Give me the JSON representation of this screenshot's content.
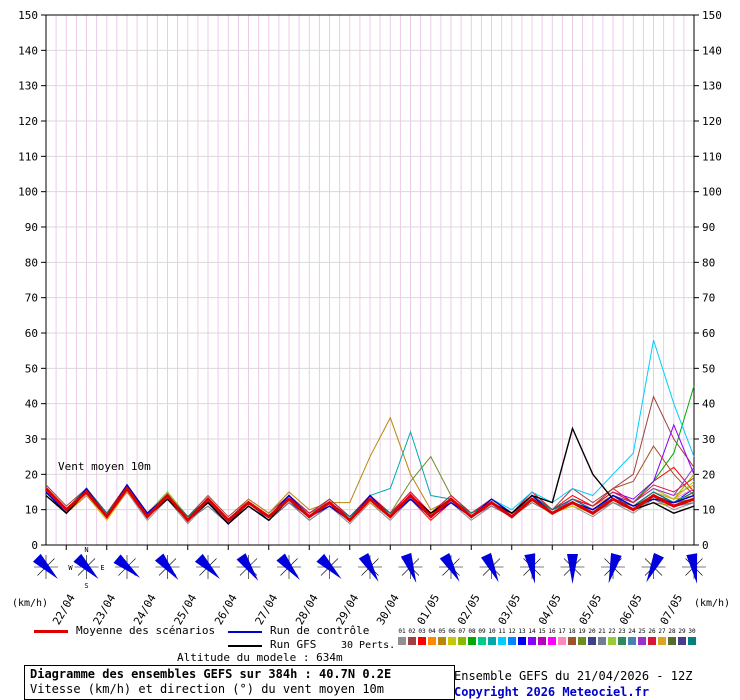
{
  "chart_data": {
    "type": "line",
    "ylim": [
      0,
      150
    ],
    "ytick_step": 10,
    "x_hours_max": 384,
    "x_step_hours": 12,
    "grid_minor_hours": 6,
    "unit_label": "(km/h)",
    "inline_label": "Vent moyen 10m",
    "dates": [
      "22/04",
      "23/04",
      "24/04",
      "25/04",
      "26/04",
      "27/04",
      "28/04",
      "29/04",
      "30/04",
      "01/05",
      "02/05",
      "03/05",
      "04/05",
      "05/05",
      "06/05",
      "07/05"
    ],
    "grid_color_h": "#d9d9d9",
    "grid_color_v": "#eccbe8",
    "mean": {
      "name": "Moyenne des scénarios",
      "color": "#dd0000",
      "values": [
        16,
        10,
        15,
        8,
        16,
        8,
        14,
        7,
        13,
        7,
        12,
        8,
        13,
        8,
        12,
        7,
        13,
        8,
        14,
        8,
        13,
        8,
        12,
        8,
        13,
        9,
        12,
        9,
        13,
        10,
        14,
        11,
        13
      ]
    },
    "control": {
      "name": "Run de contrôle",
      "color": "#0000cc",
      "values": [
        15,
        9,
        16,
        8,
        17,
        9,
        14,
        7,
        12,
        6,
        12,
        8,
        14,
        8,
        11,
        7,
        14,
        8,
        13,
        8,
        12,
        8,
        13,
        9,
        14,
        9,
        12,
        10,
        14,
        11,
        13,
        12,
        14
      ]
    },
    "gfs": {
      "name": "Run GFS",
      "color": "#000000",
      "values": [
        14,
        9,
        15,
        8,
        16,
        8,
        13,
        7,
        12,
        6,
        11,
        7,
        13,
        8,
        12,
        7,
        13,
        8,
        14,
        9,
        13,
        8,
        12,
        9,
        14,
        12,
        33,
        20,
        13,
        10,
        12,
        9,
        11
      ]
    },
    "members": [
      {
        "id": "01",
        "color": "#909090",
        "values": [
          15,
          9,
          14,
          8,
          15,
          7,
          13,
          6,
          12,
          6,
          11,
          7,
          12,
          7,
          11,
          6,
          12,
          7,
          13,
          8,
          12,
          7,
          11,
          8,
          14,
          9,
          11,
          8,
          12,
          9,
          13,
          10,
          12
        ]
      },
      {
        "id": "02",
        "color": "#a04040",
        "values": [
          17,
          11,
          16,
          9,
          15,
          8,
          15,
          8,
          14,
          8,
          13,
          9,
          14,
          8,
          13,
          8,
          14,
          9,
          15,
          9,
          14,
          9,
          13,
          9,
          14,
          10,
          16,
          12,
          16,
          20,
          42,
          30,
          22
        ]
      },
      {
        "id": "03",
        "color": "#ff0000",
        "values": [
          16,
          10,
          15,
          8,
          17,
          9,
          14,
          7,
          12,
          6,
          12,
          8,
          14,
          9,
          12,
          7,
          14,
          8,
          13,
          7,
          12,
          8,
          13,
          9,
          15,
          10,
          14,
          11,
          16,
          12,
          18,
          22,
          15
        ]
      },
      {
        "id": "04",
        "color": "#ff8800",
        "values": [
          15,
          10,
          16,
          9,
          16,
          8,
          14,
          8,
          13,
          7,
          12,
          8,
          13,
          9,
          12,
          8,
          13,
          9,
          14,
          9,
          13,
          9,
          12,
          9,
          13,
          10,
          13,
          11,
          14,
          12,
          16,
          14,
          17
        ]
      },
      {
        "id": "05",
        "color": "#b8860b",
        "values": [
          16,
          9,
          15,
          8,
          15,
          8,
          13,
          7,
          12,
          7,
          13,
          9,
          15,
          10,
          12,
          12,
          25,
          36,
          20,
          10,
          13,
          9,
          12,
          8,
          13,
          9,
          12,
          9,
          13,
          10,
          12,
          11,
          13
        ]
      },
      {
        "id": "06",
        "color": "#c8c800",
        "values": [
          14,
          9,
          14,
          7,
          15,
          8,
          13,
          7,
          11,
          6,
          11,
          7,
          12,
          8,
          11,
          7,
          12,
          8,
          13,
          8,
          12,
          8,
          11,
          8,
          12,
          9,
          11,
          9,
          12,
          10,
          13,
          11,
          12
        ]
      },
      {
        "id": "07",
        "color": "#88bb00",
        "values": [
          15,
          10,
          15,
          8,
          16,
          9,
          14,
          8,
          12,
          7,
          12,
          8,
          13,
          8,
          12,
          7,
          13,
          8,
          14,
          9,
          13,
          9,
          12,
          9,
          14,
          10,
          13,
          10,
          14,
          11,
          15,
          13,
          20
        ]
      },
      {
        "id": "08",
        "color": "#00aa00",
        "values": [
          16,
          10,
          16,
          9,
          17,
          9,
          15,
          8,
          13,
          7,
          12,
          8,
          13,
          8,
          12,
          7,
          13,
          8,
          14,
          8,
          13,
          8,
          13,
          9,
          14,
          10,
          13,
          10,
          14,
          12,
          18,
          26,
          45
        ]
      },
      {
        "id": "09",
        "color": "#00cc88",
        "values": [
          15,
          9,
          15,
          8,
          16,
          8,
          14,
          7,
          12,
          6,
          11,
          7,
          12,
          8,
          11,
          7,
          12,
          8,
          13,
          8,
          12,
          8,
          12,
          8,
          13,
          9,
          12,
          9,
          13,
          10,
          14,
          11,
          13
        ]
      },
      {
        "id": "10",
        "color": "#00aaaa",
        "values": [
          16,
          10,
          15,
          9,
          16,
          9,
          14,
          8,
          13,
          7,
          12,
          8,
          14,
          9,
          13,
          8,
          14,
          16,
          32,
          14,
          13,
          9,
          13,
          9,
          14,
          10,
          13,
          10,
          14,
          11,
          15,
          12,
          14
        ]
      },
      {
        "id": "11",
        "color": "#00ccff",
        "values": [
          15,
          9,
          14,
          8,
          15,
          8,
          13,
          7,
          12,
          7,
          12,
          8,
          13,
          8,
          12,
          7,
          13,
          9,
          14,
          9,
          13,
          9,
          13,
          10,
          15,
          12,
          16,
          14,
          20,
          26,
          58,
          40,
          25
        ]
      },
      {
        "id": "12",
        "color": "#0088ff",
        "values": [
          14,
          9,
          15,
          8,
          16,
          8,
          14,
          7,
          12,
          6,
          12,
          7,
          13,
          8,
          12,
          7,
          13,
          8,
          13,
          8,
          12,
          8,
          12,
          9,
          13,
          9,
          12,
          10,
          13,
          11,
          14,
          12,
          13
        ]
      },
      {
        "id": "13",
        "color": "#0000ee",
        "values": [
          16,
          10,
          16,
          9,
          17,
          9,
          14,
          8,
          13,
          7,
          12,
          8,
          13,
          9,
          12,
          8,
          13,
          9,
          14,
          9,
          13,
          9,
          12,
          9,
          14,
          10,
          13,
          10,
          14,
          11,
          15,
          12,
          16
        ]
      },
      {
        "id": "14",
        "color": "#8800ff",
        "values": [
          15,
          10,
          15,
          8,
          16,
          8,
          14,
          7,
          13,
          7,
          12,
          8,
          13,
          8,
          12,
          7,
          13,
          8,
          14,
          8,
          13,
          8,
          12,
          9,
          13,
          10,
          13,
          11,
          15,
          13,
          18,
          34,
          20
        ]
      },
      {
        "id": "15",
        "color": "#bb00bb",
        "values": [
          16,
          10,
          15,
          9,
          16,
          9,
          14,
          8,
          12,
          7,
          12,
          8,
          14,
          9,
          12,
          8,
          13,
          9,
          14,
          9,
          13,
          9,
          12,
          9,
          13,
          10,
          12,
          10,
          13,
          11,
          14,
          12,
          15
        ]
      },
      {
        "id": "16",
        "color": "#ff00ff",
        "values": [
          15,
          9,
          14,
          8,
          15,
          8,
          13,
          7,
          12,
          6,
          11,
          7,
          12,
          8,
          11,
          7,
          12,
          8,
          13,
          8,
          12,
          8,
          11,
          8,
          13,
          9,
          12,
          9,
          13,
          10,
          14,
          11,
          13
        ]
      },
      {
        "id": "17",
        "color": "#ff88bb",
        "values": [
          16,
          10,
          16,
          9,
          16,
          9,
          14,
          8,
          13,
          7,
          12,
          8,
          13,
          9,
          12,
          8,
          13,
          9,
          14,
          9,
          13,
          9,
          13,
          9,
          14,
          10,
          13,
          10,
          14,
          11,
          15,
          13,
          16
        ]
      },
      {
        "id": "18",
        "color": "#a0522d",
        "values": [
          15,
          9,
          15,
          8,
          16,
          8,
          14,
          7,
          12,
          7,
          12,
          8,
          13,
          8,
          12,
          7,
          13,
          8,
          14,
          8,
          13,
          8,
          12,
          9,
          13,
          10,
          13,
          11,
          16,
          18,
          28,
          20,
          14
        ]
      },
      {
        "id": "19",
        "color": "#6b8e23",
        "values": [
          16,
          10,
          15,
          8,
          16,
          9,
          14,
          8,
          13,
          7,
          12,
          8,
          13,
          8,
          12,
          8,
          13,
          9,
          18,
          25,
          14,
          9,
          12,
          9,
          13,
          10,
          12,
          10,
          13,
          11,
          14,
          12,
          15
        ]
      },
      {
        "id": "20",
        "color": "#404088",
        "values": [
          15,
          9,
          14,
          8,
          15,
          8,
          13,
          7,
          12,
          6,
          11,
          7,
          12,
          8,
          12,
          7,
          12,
          8,
          13,
          8,
          12,
          8,
          12,
          8,
          13,
          9,
          12,
          9,
          13,
          10,
          13,
          11,
          12
        ]
      },
      {
        "id": "21",
        "color": "#708090",
        "values": [
          14,
          9,
          14,
          8,
          15,
          8,
          13,
          7,
          11,
          6,
          11,
          7,
          12,
          7,
          11,
          7,
          12,
          8,
          13,
          8,
          12,
          8,
          11,
          8,
          12,
          9,
          12,
          9,
          12,
          10,
          13,
          11,
          12
        ]
      },
      {
        "id": "22",
        "color": "#99cc33",
        "values": [
          16,
          10,
          16,
          9,
          17,
          9,
          15,
          8,
          13,
          7,
          12,
          8,
          13,
          9,
          12,
          8,
          13,
          9,
          14,
          9,
          13,
          9,
          12,
          9,
          14,
          10,
          13,
          10,
          14,
          12,
          16,
          13,
          18
        ]
      },
      {
        "id": "23",
        "color": "#2e8b57",
        "values": [
          15,
          10,
          15,
          8,
          16,
          8,
          14,
          8,
          12,
          7,
          12,
          8,
          13,
          8,
          12,
          7,
          13,
          8,
          14,
          9,
          13,
          8,
          12,
          9,
          13,
          10,
          12,
          10,
          14,
          11,
          15,
          12,
          14
        ]
      },
      {
        "id": "24",
        "color": "#4682b4",
        "values": [
          16,
          10,
          15,
          9,
          16,
          9,
          14,
          8,
          13,
          7,
          12,
          8,
          13,
          9,
          12,
          8,
          13,
          9,
          14,
          9,
          13,
          9,
          12,
          9,
          14,
          10,
          13,
          10,
          14,
          11,
          14,
          12,
          13
        ]
      },
      {
        "id": "25",
        "color": "#9932cc",
        "values": [
          15,
          9,
          15,
          8,
          16,
          8,
          13,
          7,
          12,
          6,
          11,
          7,
          13,
          8,
          12,
          7,
          13,
          8,
          13,
          8,
          12,
          8,
          12,
          9,
          13,
          9,
          13,
          10,
          14,
          12,
          16,
          14,
          22
        ]
      },
      {
        "id": "26",
        "color": "#dc143c",
        "values": [
          16,
          10,
          16,
          9,
          17,
          9,
          14,
          8,
          13,
          7,
          12,
          8,
          14,
          9,
          13,
          8,
          14,
          9,
          15,
          9,
          14,
          9,
          13,
          9,
          14,
          10,
          13,
          11,
          15,
          12,
          17,
          15,
          19
        ]
      },
      {
        "id": "27",
        "color": "#daa520",
        "values": [
          15,
          9,
          14,
          8,
          15,
          8,
          13,
          7,
          12,
          7,
          12,
          8,
          13,
          8,
          12,
          7,
          12,
          8,
          13,
          8,
          12,
          8,
          12,
          8,
          13,
          9,
          12,
          10,
          14,
          11,
          15,
          13,
          14
        ]
      },
      {
        "id": "28",
        "color": "#556b2f",
        "values": [
          16,
          10,
          15,
          8,
          16,
          8,
          14,
          7,
          13,
          7,
          12,
          8,
          13,
          8,
          12,
          7,
          13,
          8,
          14,
          8,
          13,
          8,
          12,
          9,
          13,
          9,
          12,
          10,
          13,
          11,
          14,
          12,
          13
        ]
      },
      {
        "id": "29",
        "color": "#483d8b",
        "values": [
          15,
          9,
          15,
          8,
          16,
          8,
          14,
          7,
          12,
          6,
          12,
          7,
          13,
          8,
          12,
          7,
          13,
          8,
          13,
          8,
          13,
          8,
          12,
          8,
          13,
          9,
          12,
          9,
          14,
          10,
          14,
          12,
          14
        ]
      },
      {
        "id": "30",
        "color": "#008080",
        "values": [
          16,
          10,
          16,
          9,
          16,
          9,
          14,
          8,
          13,
          7,
          12,
          8,
          13,
          8,
          12,
          8,
          13,
          9,
          14,
          9,
          13,
          9,
          12,
          9,
          14,
          10,
          13,
          10,
          14,
          11,
          15,
          12,
          15
        ]
      }
    ],
    "wind_barbs": {
      "angles": [
        135,
        135,
        130,
        140,
        135,
        145,
        140,
        135,
        150,
        160,
        150,
        155,
        170,
        180,
        195,
        205,
        170
      ],
      "arrow_color": "#0000dd",
      "compass": {
        "north": "N",
        "south": "S",
        "east": "E",
        "west": "W"
      }
    }
  },
  "legend": {
    "mean_label": "Moyenne des scénarios",
    "control_label": "Run de contrôle",
    "gfs_label": "Run GFS",
    "perts_label": "30 Perts."
  },
  "footer": {
    "altitude_note": "Altitude du modele : 634m",
    "title_line1": "Diagramme des ensembles GEFS sur 384h : 40.7N 0.2E",
    "title_line2": "Vitesse (km/h) et direction (°) du vent moyen 10m",
    "run_info": "Ensemble GEFS du 21/04/2026 - 12Z",
    "copyright": "Copyright 2026 Meteociel.fr",
    "copyright_color": "#0000cc"
  }
}
